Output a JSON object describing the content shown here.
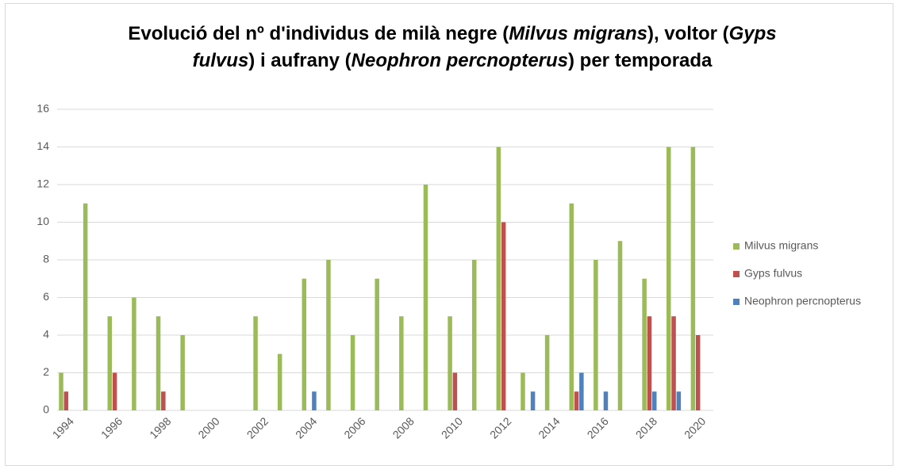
{
  "chart_data": {
    "type": "bar",
    "title": [
      "Evolució del nº d'individus de milà negre (",
      "Milvus migrans",
      "), voltor (",
      "Gyps fulvus",
      ") i aufrany (",
      "Neophron percnopterus",
      ") per temporada"
    ],
    "categories": [
      "1994",
      null,
      "1996",
      null,
      "1998",
      null,
      "2000",
      null,
      "2002",
      null,
      "2004",
      null,
      "2006",
      null,
      "2008",
      null,
      "2010",
      null,
      "2012",
      null,
      "2014",
      null,
      "2016",
      null,
      "2018",
      null,
      "2020"
    ],
    "series": [
      {
        "name": "Milvus migrans",
        "color": "#9bbb59",
        "values": [
          2,
          11,
          5,
          6,
          5,
          4,
          0,
          0,
          5,
          3,
          7,
          8,
          4,
          7,
          5,
          12,
          5,
          8,
          14,
          2,
          4,
          11,
          8,
          9,
          7,
          14,
          14
        ]
      },
      {
        "name": "Gyps fulvus",
        "color": "#c0504d",
        "values": [
          1,
          0,
          2,
          0,
          1,
          0,
          0,
          0,
          0,
          0,
          0,
          0,
          0,
          0,
          0,
          0,
          2,
          0,
          10,
          0,
          0,
          1,
          0,
          0,
          5,
          5,
          4
        ]
      },
      {
        "name": "Neophron percnopterus",
        "color": "#4f81bd",
        "values": [
          0,
          0,
          0,
          0,
          0,
          0,
          0,
          0,
          0,
          0,
          1,
          0,
          0,
          0,
          0,
          0,
          0,
          0,
          0,
          1,
          0,
          2,
          1,
          0,
          1,
          1,
          0
        ]
      }
    ],
    "ylim": [
      0,
      16
    ],
    "yticks": [
      0,
      2,
      4,
      6,
      8,
      10,
      12,
      14,
      16
    ],
    "grid": true,
    "legend": "right"
  }
}
